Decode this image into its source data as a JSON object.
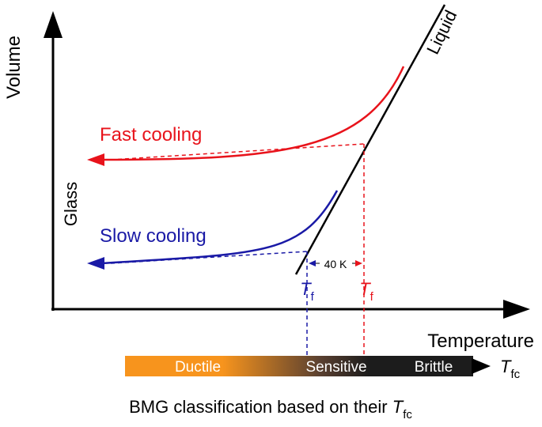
{
  "axes": {
    "y_label": "Volume",
    "x_label": "Temperature"
  },
  "curves": {
    "liquid_label": "Liquid",
    "glass_label": "Glass",
    "fast_cooling_label": "Fast cooling",
    "slow_cooling_label": "Slow cooling",
    "fast_color": "#e8131b",
    "slow_color": "#1a1aa6",
    "line_color": "#000000"
  },
  "fictive_temperatures": {
    "symbol": "T",
    "subscript": "f",
    "gap_label": "40 K"
  },
  "classification_bar": {
    "segments": [
      "Ductile",
      "Sensitive",
      "Brittle"
    ],
    "colors": {
      "start": "#f7941d",
      "end": "#1c1c1c"
    },
    "axis_symbol": "T",
    "axis_subscript": "fc"
  },
  "caption": {
    "text": "BMG classification based on their ",
    "symbol": "T",
    "subscript": "fc"
  }
}
